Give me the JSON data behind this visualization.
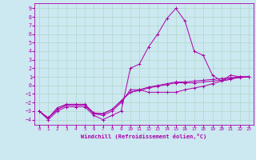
{
  "xlabel": "Windchill (Refroidissement éolien,°C)",
  "background_color": "#cce8f0",
  "grid_color": "#b0d8cc",
  "line_color": "#aa00aa",
  "x_ticks": [
    0,
    1,
    2,
    3,
    4,
    5,
    6,
    7,
    8,
    9,
    10,
    11,
    12,
    13,
    14,
    15,
    16,
    17,
    18,
    19,
    20,
    21,
    22,
    23
  ],
  "y_ticks": [
    -4,
    -3,
    -2,
    -1,
    0,
    1,
    2,
    3,
    4,
    5,
    6,
    7,
    8,
    9
  ],
  "xlim": [
    -0.5,
    23.5
  ],
  "ylim": [
    -4.6,
    9.6
  ],
  "series": [
    {
      "x": [
        0,
        1,
        2,
        3,
        4,
        5,
        6,
        7,
        8,
        9,
        10,
        11,
        12,
        13,
        14,
        15,
        16,
        17,
        18,
        19,
        20,
        21,
        22,
        23
      ],
      "y": [
        -3.0,
        -4.0,
        -3.0,
        -2.5,
        -2.5,
        -2.5,
        -3.5,
        -4.0,
        -3.5,
        -3.0,
        2.0,
        2.5,
        4.5,
        6.0,
        7.8,
        9.0,
        7.5,
        4.0,
        3.5,
        1.2,
        0.5,
        1.2,
        1.0,
        1.0
      ]
    },
    {
      "x": [
        0,
        1,
        2,
        3,
        4,
        5,
        6,
        7,
        8,
        9,
        10,
        11,
        12,
        13,
        14,
        15,
        16,
        17,
        18,
        19,
        20,
        21,
        22,
        23
      ],
      "y": [
        -3.0,
        -3.8,
        -2.8,
        -2.3,
        -2.3,
        -2.3,
        -3.3,
        -3.5,
        -3.0,
        -2.0,
        -0.5,
        -0.5,
        -0.8,
        -0.8,
        -0.8,
        -0.8,
        -0.5,
        -0.3,
        -0.1,
        0.2,
        0.5,
        0.7,
        1.0,
        1.0
      ]
    },
    {
      "x": [
        0,
        1,
        2,
        3,
        4,
        5,
        6,
        7,
        8,
        9,
        10,
        11,
        12,
        13,
        14,
        15,
        16,
        17,
        18,
        19,
        20,
        21,
        22,
        23
      ],
      "y": [
        -3.0,
        -3.8,
        -2.8,
        -2.3,
        -2.3,
        -2.3,
        -3.3,
        -3.3,
        -2.8,
        -1.8,
        -0.8,
        -0.6,
        -0.3,
        -0.1,
        0.1,
        0.3,
        0.3,
        0.3,
        0.4,
        0.5,
        0.6,
        0.8,
        0.9,
        1.0
      ]
    },
    {
      "x": [
        0,
        1,
        2,
        3,
        4,
        5,
        6,
        7,
        8,
        9,
        10,
        11,
        12,
        13,
        14,
        15,
        16,
        17,
        18,
        19,
        20,
        21,
        22,
        23
      ],
      "y": [
        -3.0,
        -3.8,
        -2.6,
        -2.2,
        -2.2,
        -2.2,
        -3.2,
        -3.3,
        -2.8,
        -1.8,
        -0.8,
        -0.5,
        -0.2,
        0.0,
        0.2,
        0.4,
        0.4,
        0.5,
        0.6,
        0.7,
        0.8,
        0.9,
        1.0,
        1.0
      ]
    }
  ]
}
